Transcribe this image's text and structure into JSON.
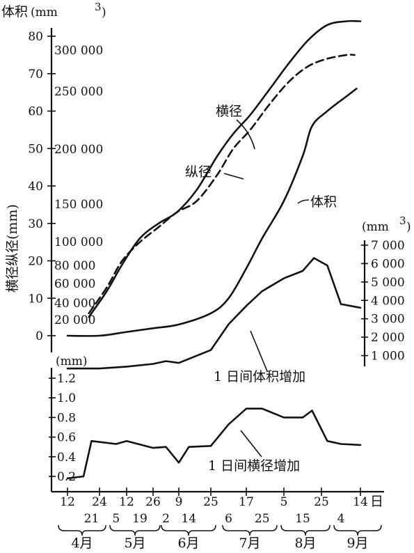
{
  "chart_data": {
    "type": "line",
    "texts": {
      "top_axis_title": "体积",
      "top_axis_unit": "(mm",
      "unit_exp": "3",
      "left_axis_title": "横径纵径(mm)",
      "right_axis_unit": "(mm",
      "bottom_left_unit": "(mm)",
      "day_suffix": "日"
    },
    "dates": [
      "4/12",
      "4/21",
      "4/24",
      "5/5",
      "5/12",
      "5/19",
      "5/26",
      "6/2",
      "6/9",
      "6/14",
      "6/25",
      "7/6",
      "7/17",
      "7/25",
      "8/5",
      "8/15",
      "8/25",
      "9/4",
      "9/14"
    ],
    "x_tick_labels_row1": [
      "12",
      "24",
      "12",
      "26",
      "9",
      "25",
      "17",
      "5",
      "25",
      "14"
    ],
    "x_tick_labels_row2": [
      "21",
      "5",
      "19",
      "2",
      "14",
      "6",
      "25",
      "15",
      "4"
    ],
    "months": [
      "4月",
      "5月",
      "6月",
      "7月",
      "8月",
      "9月"
    ],
    "axes": {
      "diameter_mm": {
        "ticks": [
          0,
          10,
          20,
          30,
          40,
          50,
          60,
          70,
          80
        ],
        "range": [
          0,
          83
        ]
      },
      "volume_mm3": {
        "ticks": [
          "20 000",
          "40 000",
          "60 000",
          "80 000",
          "100 000",
          "150 000",
          "200 000",
          "250 000",
          "300 000"
        ]
      },
      "daily_volume_mm3": {
        "ticks": [
          "1 000",
          "2 000",
          "3 000",
          "4 000",
          "5 000",
          "6 000",
          "7 000"
        ],
        "range": [
          0,
          7000
        ]
      },
      "daily_diameter_mm": {
        "ticks": [
          "0.2",
          "0.4",
          "0.6",
          "0.8",
          "1.0",
          "1.2"
        ],
        "range": [
          0.1,
          1.3
        ]
      }
    },
    "series": [
      {
        "name": "横径",
        "axis": "diameter_mm",
        "style": "solid",
        "x": [
          "4/20",
          "4/29",
          "5/9",
          "5/19",
          "5/29",
          "6/8",
          "6/18",
          "6/29",
          "7/9",
          "7/19",
          "7/29",
          "8/8",
          "8/18",
          "8/28",
          "9/7",
          "9/14"
        ],
        "y": [
          5,
          12,
          19,
          26,
          30,
          33,
          39,
          48,
          54,
          59,
          66,
          73,
          79,
          83,
          84,
          84
        ]
      },
      {
        "name": "纵径",
        "axis": "diameter_mm",
        "style": "dashed",
        "x": [
          "4/20",
          "4/29",
          "5/9",
          "5/19",
          "5/29",
          "6/8",
          "6/18",
          "6/29",
          "7/9",
          "7/19",
          "7/29",
          "8/8",
          "8/18",
          "8/28",
          "9/7",
          "9/11"
        ],
        "y": [
          6,
          13,
          20,
          25,
          29,
          33,
          36,
          43,
          50,
          55,
          62,
          68,
          72,
          74,
          75,
          75
        ]
      },
      {
        "name": "体积",
        "axis": "diameter_mm",
        "style": "solid",
        "x": [
          "4/12",
          "4/24",
          "5/12",
          "5/26",
          "6/9",
          "6/25",
          "7/6",
          "7/17",
          "7/25",
          "8/5",
          "8/15",
          "8/20",
          "8/28",
          "9/7",
          "9/12"
        ],
        "y": [
          0,
          0,
          1,
          2,
          3,
          6,
          10,
          18,
          26,
          36,
          48,
          56,
          60,
          64,
          66
        ]
      },
      {
        "name": "1 日间体积增加",
        "axis": "daily_volume_mm3",
        "style": "solid",
        "x": [
          "4/12",
          "4/24",
          "5/12",
          "5/26",
          "6/2",
          "6/9",
          "6/25",
          "7/6",
          "7/17",
          "7/25",
          "8/5",
          "8/15",
          "8/21",
          "8/28",
          "9/4",
          "9/14"
        ],
        "y": [
          300,
          300,
          400,
          550,
          700,
          600,
          1300,
          2700,
          3700,
          4500,
          5200,
          5600,
          6300,
          5900,
          3800,
          3600
        ]
      },
      {
        "name": "1 日间横径增加",
        "axis": "daily_diameter_mm",
        "style": "solid",
        "x": [
          "4/12",
          "4/18",
          "4/21",
          "5/5",
          "5/12",
          "5/26",
          "6/2",
          "6/9",
          "6/14",
          "6/25",
          "7/6",
          "7/17",
          "7/25",
          "8/5",
          "8/15",
          "8/20",
          "8/28",
          "9/4",
          "9/14"
        ],
        "y": [
          0.18,
          0.2,
          0.56,
          0.53,
          0.56,
          0.49,
          0.5,
          0.34,
          0.5,
          0.51,
          0.73,
          0.89,
          0.89,
          0.8,
          0.8,
          0.87,
          0.56,
          0.53,
          0.52
        ]
      }
    ],
    "grid": false,
    "legend": "none"
  }
}
